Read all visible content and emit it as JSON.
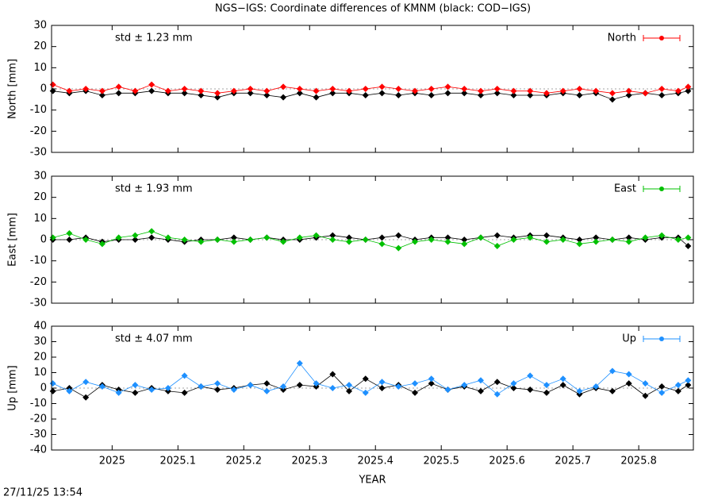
{
  "timestamp": "27/11/25 13:54",
  "chart_data": [
    {
      "type": "scatter",
      "title": "NGS−IGS: Coordinate differences of KMNM (black: COD−IGS)",
      "ylabel": "North [mm]",
      "annotation": "std ± 1.23 mm",
      "xlim": [
        2024.908,
        2025.883
      ],
      "xticks": [
        2025,
        2025.1,
        2025.2,
        2025.3,
        2025.4,
        2025.5,
        2025.6,
        2025.7,
        2025.8
      ],
      "ylim": [
        -30,
        30
      ],
      "yticks": [
        30,
        20,
        10,
        0,
        -10,
        -20,
        -30
      ],
      "x": [
        2024.91,
        2024.935,
        2024.96,
        2024.985,
        2025.01,
        2025.035,
        2025.06,
        2025.085,
        2025.11,
        2025.135,
        2025.16,
        2025.185,
        2025.21,
        2025.235,
        2025.26,
        2025.285,
        2025.31,
        2025.335,
        2025.36,
        2025.385,
        2025.41,
        2025.435,
        2025.46,
        2025.485,
        2025.51,
        2025.535,
        2025.56,
        2025.585,
        2025.61,
        2025.635,
        2025.66,
        2025.685,
        2025.71,
        2025.735,
        2025.76,
        2025.785,
        2025.81,
        2025.835,
        2025.86,
        2025.875
      ],
      "series": [
        {
          "color": "#000000",
          "values": [
            -1,
            -2,
            -1,
            -3,
            -2,
            -2,
            -1,
            -2,
            -2,
            -3,
            -4,
            -2,
            -2,
            -3,
            -4,
            -2,
            -4,
            -2,
            -2,
            -3,
            -2,
            -3,
            -2,
            -3,
            -2,
            -2,
            -3,
            -2,
            -3,
            -3,
            -3,
            -2,
            -3,
            -2,
            -5,
            -3,
            -2,
            -3,
            -2,
            -1
          ]
        },
        {
          "name": "North",
          "color": "#ff0000",
          "values": [
            2,
            -1,
            0,
            -1,
            1,
            -1,
            2,
            -1,
            0,
            -1,
            -2,
            -1,
            0,
            -1,
            1,
            0,
            -1,
            0,
            -1,
            0,
            1,
            0,
            -1,
            0,
            1,
            0,
            -1,
            0,
            -1,
            -1,
            -2,
            -1,
            0,
            -1,
            -2,
            -1,
            -2,
            0,
            -1,
            1
          ]
        }
      ]
    },
    {
      "type": "scatter",
      "ylabel": "East [mm]",
      "annotation": "std ± 1.93 mm",
      "xlim": [
        2024.908,
        2025.883
      ],
      "xticks": [
        2025,
        2025.1,
        2025.2,
        2025.3,
        2025.4,
        2025.5,
        2025.6,
        2025.7,
        2025.8
      ],
      "ylim": [
        -30,
        30
      ],
      "yticks": [
        30,
        20,
        10,
        0,
        -10,
        -20,
        -30
      ],
      "x": [
        2024.91,
        2024.935,
        2024.96,
        2024.985,
        2025.01,
        2025.035,
        2025.06,
        2025.085,
        2025.11,
        2025.135,
        2025.16,
        2025.185,
        2025.21,
        2025.235,
        2025.26,
        2025.285,
        2025.31,
        2025.335,
        2025.36,
        2025.385,
        2025.41,
        2025.435,
        2025.46,
        2025.485,
        2025.51,
        2025.535,
        2025.56,
        2025.585,
        2025.61,
        2025.635,
        2025.66,
        2025.685,
        2025.71,
        2025.735,
        2025.76,
        2025.785,
        2025.81,
        2025.835,
        2025.86,
        2025.875
      ],
      "series": [
        {
          "color": "#000000",
          "values": [
            0,
            0,
            1,
            -1,
            0,
            0,
            1,
            0,
            -1,
            0,
            0,
            1,
            0,
            1,
            0,
            0,
            1,
            2,
            1,
            0,
            1,
            2,
            0,
            1,
            1,
            0,
            1,
            2,
            1,
            2,
            2,
            1,
            0,
            1,
            0,
            1,
            0,
            1,
            1,
            -3
          ]
        },
        {
          "name": "East",
          "color": "#00c000",
          "values": [
            1,
            3,
            0,
            -2,
            1,
            2,
            4,
            1,
            0,
            -1,
            0,
            -1,
            0,
            1,
            -1,
            1,
            2,
            0,
            -1,
            0,
            -2,
            -4,
            -1,
            0,
            -1,
            -2,
            1,
            -3,
            0,
            1,
            -1,
            0,
            -2,
            -1,
            0,
            -1,
            1,
            2,
            0,
            1
          ]
        }
      ]
    },
    {
      "type": "scatter",
      "ylabel": "Up [mm]",
      "annotation": "std ± 4.07 mm",
      "xlabel": "YEAR",
      "xlim": [
        2024.908,
        2025.883
      ],
      "xticks": [
        2025,
        2025.1,
        2025.2,
        2025.3,
        2025.4,
        2025.5,
        2025.6,
        2025.7,
        2025.8
      ],
      "ylim": [
        -40,
        40
      ],
      "yticks": [
        40,
        30,
        20,
        10,
        0,
        -10,
        -20,
        -30,
        -40
      ],
      "x": [
        2024.91,
        2024.935,
        2024.96,
        2024.985,
        2025.01,
        2025.035,
        2025.06,
        2025.085,
        2025.11,
        2025.135,
        2025.16,
        2025.185,
        2025.21,
        2025.235,
        2025.26,
        2025.285,
        2025.31,
        2025.335,
        2025.36,
        2025.385,
        2025.41,
        2025.435,
        2025.46,
        2025.485,
        2025.51,
        2025.535,
        2025.56,
        2025.585,
        2025.61,
        2025.635,
        2025.66,
        2025.685,
        2025.71,
        2025.735,
        2025.76,
        2025.785,
        2025.81,
        2025.835,
        2025.86,
        2025.875
      ],
      "series": [
        {
          "color": "#000000",
          "values": [
            -2,
            0,
            -6,
            2,
            -1,
            -3,
            0,
            -2,
            -3,
            1,
            -1,
            0,
            2,
            3,
            -1,
            2,
            1,
            9,
            -2,
            6,
            0,
            2,
            -3,
            3,
            -1,
            1,
            -2,
            4,
            0,
            -1,
            -3,
            2,
            -4,
            0,
            -2,
            3,
            -5,
            1,
            -2,
            2
          ]
        },
        {
          "name": "Up",
          "color": "#1e90ff",
          "values": [
            3,
            -2,
            4,
            1,
            -3,
            2,
            -1,
            0,
            8,
            1,
            3,
            -1,
            2,
            -2,
            1,
            16,
            3,
            0,
            2,
            -3,
            4,
            1,
            3,
            6,
            -1,
            2,
            5,
            -4,
            3,
            8,
            2,
            6,
            -2,
            1,
            11,
            9,
            3,
            -3,
            2,
            5
          ]
        }
      ]
    }
  ]
}
